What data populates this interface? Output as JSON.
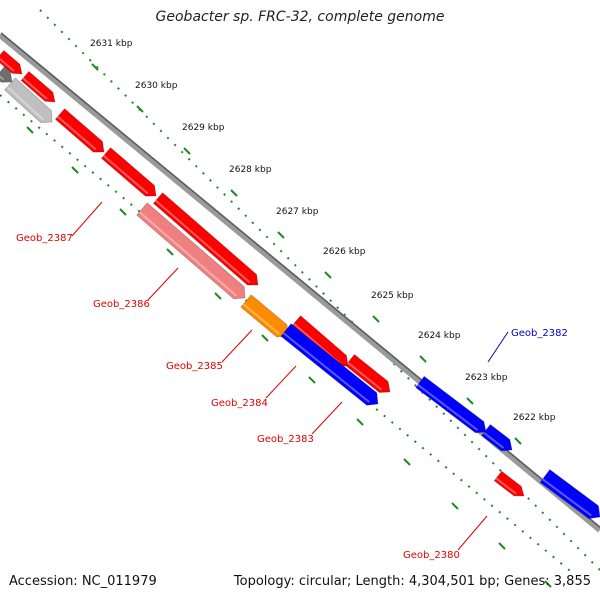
{
  "title": "Geobacter sp. FRC-32, complete genome",
  "footer": {
    "accession": "Accession: NC_011979",
    "summary": "Topology: circular; Length: 4,304,501 bp; Genes: 3,855"
  },
  "colors": {
    "backbone": "#8c8c8c",
    "tick": "#1f8a1f",
    "red": "#ff0000",
    "pink": "#f08080",
    "orange": "#ff8c00",
    "blue": "#0000ff",
    "gray": "#bfbfbf",
    "dark_gray": "#6e6e6e",
    "label_red": "#e00000",
    "label_blue": "#0000cc"
  },
  "ticks": [
    {
      "label": "2631 kbp"
    },
    {
      "label": "2630 kbp"
    },
    {
      "label": "2629 kbp"
    },
    {
      "label": "2628 kbp"
    },
    {
      "label": "2627 kbp"
    },
    {
      "label": "2626 kbp"
    },
    {
      "label": "2625 kbp"
    },
    {
      "label": "2624 kbp"
    },
    {
      "label": "2623 kbp"
    },
    {
      "label": "2622 kbp"
    }
  ],
  "gene_labels": [
    {
      "text": "Geob_2387",
      "color": "red"
    },
    {
      "text": "Geob_2386",
      "color": "red"
    },
    {
      "text": "Geob_2385",
      "color": "red"
    },
    {
      "text": "Geob_2384",
      "color": "red"
    },
    {
      "text": "Geob_2383",
      "color": "red"
    },
    {
      "text": "Geob_2380",
      "color": "red"
    },
    {
      "text": "Geob_2382",
      "color": "blue"
    }
  ]
}
